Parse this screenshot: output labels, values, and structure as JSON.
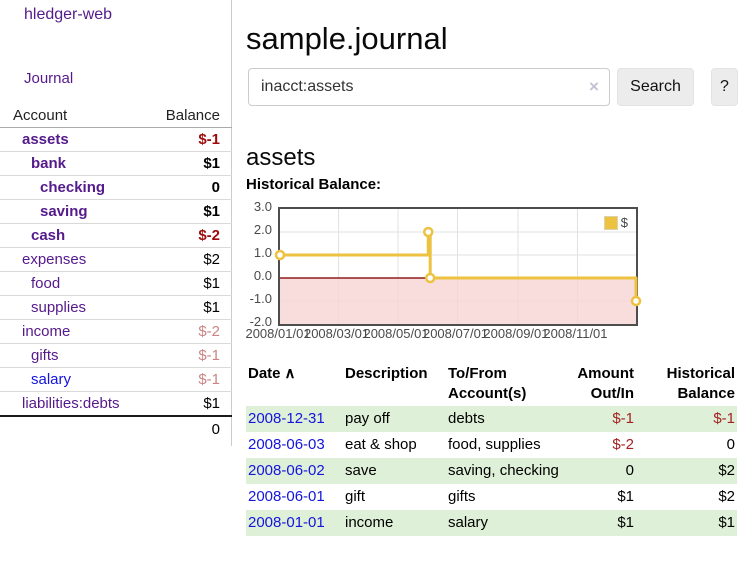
{
  "app": {
    "brand": "hledger-web",
    "nav_journal": "Journal"
  },
  "header": {
    "title": "sample.journal"
  },
  "search": {
    "value": "inacct:assets",
    "clear_icon": "×",
    "button_label": "Search",
    "help_label": "?"
  },
  "account_page": {
    "heading": "assets",
    "chart_label": "Historical Balance:"
  },
  "colors": {
    "accent_purple": "#551a8b",
    "link_blue": "#1414dd",
    "negative_strong": "#9e0b0b",
    "negative_soft": "#c98585",
    "table_row_green": "#dff0d8",
    "chart_line": "#edc240",
    "chart_negative_region": "#f7d4d4",
    "chart_zero_line": "#8f1d1d"
  },
  "sidebar": {
    "accounts_header": {
      "account": "Account",
      "balance": "Balance"
    },
    "accounts": [
      {
        "name": "assets",
        "depth": 1,
        "bold": true,
        "link": "purple",
        "balance": "$-1",
        "tone": "neg-strong"
      },
      {
        "name": "bank",
        "depth": 2,
        "bold": true,
        "link": "purple",
        "balance": "$1",
        "tone": "pos-strong"
      },
      {
        "name": "checking",
        "depth": 3,
        "bold": true,
        "link": "purple",
        "balance": "0",
        "tone": "pos-strong"
      },
      {
        "name": "saving",
        "depth": 3,
        "bold": true,
        "link": "purple",
        "balance": "$1",
        "tone": "pos-strong"
      },
      {
        "name": "cash",
        "depth": 2,
        "bold": true,
        "link": "purple",
        "balance": "$-2",
        "tone": "neg-strong"
      },
      {
        "name": "expenses",
        "depth": 1,
        "bold": false,
        "link": "purple",
        "balance": "$2",
        "tone": "pos"
      },
      {
        "name": "food",
        "depth": 2,
        "bold": false,
        "link": "purple",
        "balance": "$1",
        "tone": "pos"
      },
      {
        "name": "supplies",
        "depth": 2,
        "bold": false,
        "link": "purple",
        "balance": "$1",
        "tone": "pos"
      },
      {
        "name": "income",
        "depth": 1,
        "bold": false,
        "link": "purple",
        "balance": "$-2",
        "tone": "neg-soft"
      },
      {
        "name": "gifts",
        "depth": 2,
        "bold": false,
        "link": "purple",
        "balance": "$-1",
        "tone": "neg-soft"
      },
      {
        "name": "salary",
        "depth": 2,
        "bold": false,
        "link": "blue",
        "balance": "$-1",
        "tone": "neg-soft"
      },
      {
        "name": "liabilities:debts",
        "depth": 1,
        "bold": false,
        "link": "purple",
        "balance": "$1",
        "tone": "pos"
      }
    ],
    "total": "0"
  },
  "chart_data": {
    "type": "line",
    "style": "step-after",
    "title": "Historical Balance:",
    "legend": "$",
    "legend_position": "top-right",
    "grid": true,
    "x_range": [
      "2008/01/01",
      "2008/12/31"
    ],
    "ylim": [
      -2.0,
      3.0
    ],
    "yticks": [
      3.0,
      2.0,
      1.0,
      0.0,
      -1.0,
      -2.0
    ],
    "xticks": [
      "2008/01/01",
      "2008/03/01",
      "2008/05/01",
      "2008/07/01",
      "2008/09/01",
      "2008/11/01"
    ],
    "series": [
      {
        "name": "$",
        "color": "#edc240",
        "points": [
          {
            "x": "2008/01/01",
            "y": 1.0
          },
          {
            "x": "2008/06/01",
            "y": 2.0
          },
          {
            "x": "2008/06/03",
            "y": 0.0
          },
          {
            "x": "2008/12/31",
            "y": -1.0
          }
        ]
      }
    ],
    "negative_region_shaded": true
  },
  "transactions": {
    "headers": [
      {
        "line1": "Date",
        "line2": "",
        "align": "left",
        "sort_icon": "∧"
      },
      {
        "line1": "Description",
        "line2": "",
        "align": "left"
      },
      {
        "line1": "To/From",
        "line2": "Account(s)",
        "align": "left"
      },
      {
        "line1": "Amount",
        "line2": "Out/In",
        "align": "right"
      },
      {
        "line1": "Historical",
        "line2": "Balance",
        "align": "right"
      }
    ],
    "rows": [
      {
        "date": "2008-12-31",
        "description": "pay off",
        "accounts": "debts",
        "amount": "$-1",
        "amount_tone": "neg",
        "balance": "$-1",
        "balance_tone": "neg"
      },
      {
        "date": "2008-06-03",
        "description": "eat & shop",
        "accounts": "food, supplies",
        "amount": "$-2",
        "amount_tone": "neg",
        "balance": "0",
        "balance_tone": "pos"
      },
      {
        "date": "2008-06-02",
        "description": "save",
        "accounts": "saving, checking",
        "amount": "0",
        "amount_tone": "pos",
        "balance": "$2",
        "balance_tone": "pos"
      },
      {
        "date": "2008-06-01",
        "description": "gift",
        "accounts": "gifts",
        "amount": "$1",
        "amount_tone": "pos",
        "balance": "$2",
        "balance_tone": "pos"
      },
      {
        "date": "2008-01-01",
        "description": "income",
        "accounts": "salary",
        "amount": "$1",
        "amount_tone": "pos",
        "balance": "$1",
        "balance_tone": "pos"
      }
    ]
  }
}
